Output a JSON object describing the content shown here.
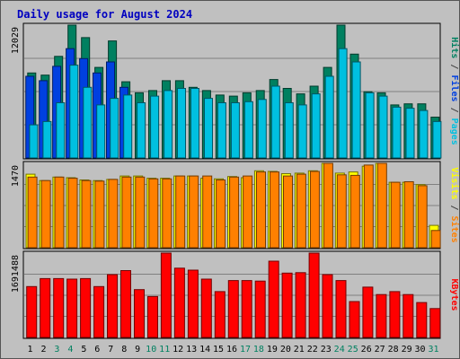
{
  "chart_data": {
    "type": "bar",
    "title": "Daily usage for August 2024",
    "categories": [
      "1",
      "2",
      "3",
      "4",
      "5",
      "6",
      "7",
      "8",
      "9",
      "10",
      "11",
      "12",
      "13",
      "14",
      "15",
      "16",
      "17",
      "18",
      "19",
      "20",
      "21",
      "22",
      "23",
      "24",
      "25",
      "26",
      "27",
      "28",
      "29",
      "30",
      "31"
    ],
    "weekend_days": [
      "3",
      "4",
      "10",
      "11",
      "17",
      "18",
      "24",
      "25",
      "31"
    ],
    "panels": [
      {
        "id": "traffic",
        "ytick_max_label": "12029",
        "ymax": 12029,
        "legend": [
          {
            "text": "Pages",
            "color": "#00c0e0"
          },
          {
            "text": " / ",
            "color": "#404040"
          },
          {
            "text": "Files",
            "color": "#0040e0"
          },
          {
            "text": " / ",
            "color": "#404040"
          },
          {
            "text": "Hits",
            "color": "#008060"
          }
        ],
        "series": [
          {
            "name": "Hits",
            "color": "#008060",
            "values": [
              7700,
              7500,
              9200,
              12029,
              10900,
              8200,
              10600,
              6900,
              5900,
              6100,
              7000,
              7000,
              6400,
              6100,
              5700,
              5600,
              5900,
              6100,
              7100,
              6300,
              5800,
              6500,
              8200,
              12029,
              9400,
              6000,
              5900,
              4800,
              4900,
              4900,
              3700
            ]
          },
          {
            "name": "Files",
            "color": "#0040e0",
            "values": [
              7400,
              7000,
              8300,
              9900,
              9000,
              7700,
              8700,
              6400,
              null,
              null,
              null,
              null,
              null,
              null,
              null,
              null,
              null,
              null,
              null,
              null,
              null,
              null,
              null,
              null,
              null,
              null,
              null,
              null,
              null,
              null,
              null
            ]
          },
          {
            "name": "Pages",
            "color": "#00c0e0",
            "values": [
              3000,
              3300,
              5000,
              8400,
              6400,
              4800,
              5400,
              5700,
              5000,
              5600,
              6100,
              6300,
              6300,
              5400,
              5000,
              5000,
              5100,
              5300,
              6500,
              5000,
              4800,
              5800,
              7400,
              9900,
              8700,
              5900,
              5600,
              4600,
              4500,
              4300,
              3300
            ]
          }
        ]
      },
      {
        "id": "visits",
        "ytick_max_label": "1470",
        "ymax": 1470,
        "legend": [
          {
            "text": "Sites",
            "color": "#ff8000"
          },
          {
            "text": " / ",
            "color": "#404040"
          },
          {
            "text": "Visits",
            "color": "#ffff00"
          }
        ],
        "series": [
          {
            "name": "Visits",
            "color": "#ffff00",
            "values": [
              1280,
              1170,
              1230,
              1220,
              1180,
              1170,
              1190,
              1250,
              1250,
              1210,
              1210,
              1250,
              1250,
              1210,
              1200,
              1240,
              1220,
              1340,
              1330,
              1290,
              1300,
              1340,
              1470,
              1300,
              1320,
              1420,
              1470,
              1140,
              1140,
              1100,
              390
            ]
          },
          {
            "name": "Sites",
            "color": "#ff8000",
            "values": [
              1230,
              1170,
              1230,
              1210,
              1170,
              1160,
              1190,
              1230,
              1230,
              1200,
              1200,
              1250,
              1250,
              1250,
              1180,
              1230,
              1250,
              1320,
              1320,
              1250,
              1280,
              1330,
              1470,
              1270,
              1260,
              1440,
              1470,
              1140,
              1150,
              1080,
              300
            ]
          }
        ]
      },
      {
        "id": "kbytes",
        "ytick_max_label": "1691488",
        "ymax": 1691488,
        "legend": [
          {
            "text": "KBytes",
            "color": "#ff0000"
          }
        ],
        "series": [
          {
            "name": "KBytes",
            "color": "#ff0000",
            "values": [
              1020000,
              1180000,
              1180000,
              1170000,
              1180000,
              1020000,
              1260000,
              1340000,
              960000,
              820000,
              1691488,
              1390000,
              1350000,
              1170000,
              920000,
              1140000,
              1140000,
              1130000,
              1530000,
              1290000,
              1300000,
              1691488,
              1260000,
              1140000,
              720000,
              1010000,
              860000,
              920000,
              860000,
              700000,
              580000
            ]
          }
        ]
      }
    ]
  }
}
